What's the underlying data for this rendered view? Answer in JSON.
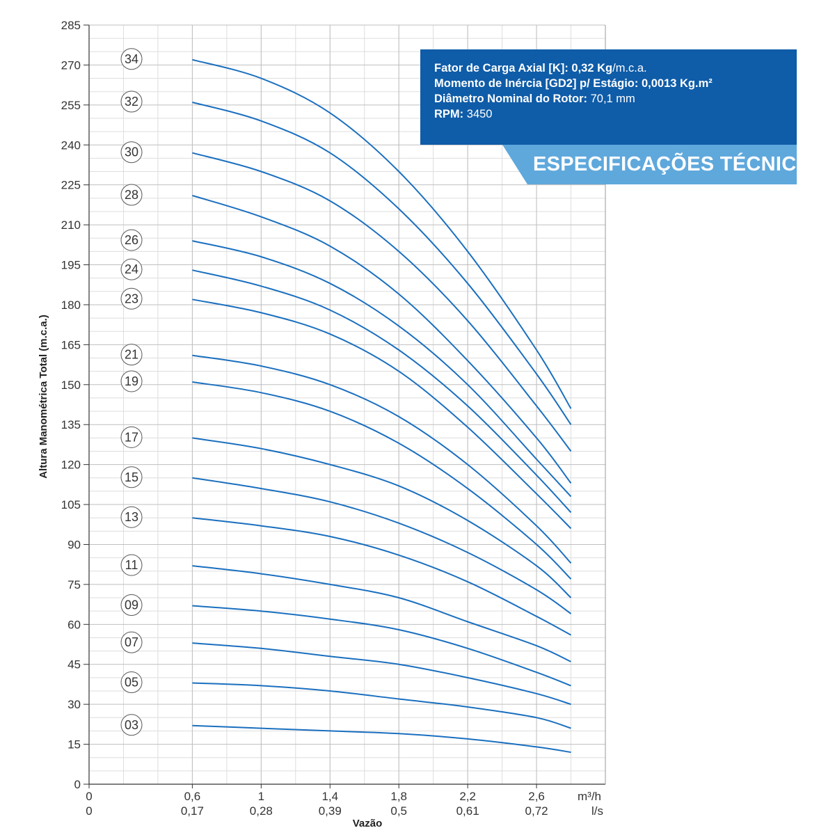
{
  "specs": {
    "line1_label": "Fator de Carga Axial [K]: 0,32 Kg",
    "line1_value": "/m.c.a.",
    "line2_label": "Momento de Inércia [GD2] p/ Estágio: 0,0013 Kg.m²",
    "line2_value": "",
    "line3_label": "Diâmetro Nominal do Rotor:",
    "line3_value": "70,1 mm",
    "line4_label": "RPM:",
    "line4_value": "3450",
    "banner": "ESPECIFICAÇÕES TÉCNICAS"
  },
  "colors": {
    "curve": "#1a6fbf",
    "banner": "#5fa8dc",
    "box": "#0f5ca8",
    "grid": "#bfbfbf"
  },
  "chart_data": {
    "type": "line",
    "title": "",
    "xlabel": "Vazão",
    "ylabel": "Altura Manométrica Total (m.c.a.)",
    "x_unit_primary": "m³/h",
    "x_unit_secondary": "l/s",
    "xlim": [
      0,
      3.0
    ],
    "ylim": [
      0,
      285
    ],
    "y_ticks": [
      "0",
      "15",
      "30",
      "45",
      "60",
      "75",
      "90",
      "105",
      "120",
      "135",
      "150",
      "165",
      "180",
      "195",
      "210",
      "225",
      "240",
      "255",
      "270",
      "285"
    ],
    "x_ticks_primary": [
      "0",
      "0,6",
      "1",
      "1,4",
      "1,8",
      "2,2",
      "2,6"
    ],
    "x_ticks_secondary": [
      "0",
      "0,17",
      "0,28",
      "0,39",
      "0,5",
      "0,61",
      "0,72"
    ],
    "x_tick_values": [
      0,
      0.6,
      1.0,
      1.4,
      1.8,
      2.2,
      2.6
    ],
    "grid": true,
    "x": [
      0.6,
      1.0,
      1.4,
      1.8,
      2.2,
      2.6,
      2.8
    ],
    "series": [
      {
        "name": "34",
        "values": [
          272,
          265,
          252,
          230,
          200,
          163,
          141
        ]
      },
      {
        "name": "32",
        "values": [
          256,
          249,
          237,
          216,
          188,
          154,
          135
        ]
      },
      {
        "name": "30",
        "values": [
          237,
          230,
          219,
          200,
          174,
          142,
          125
        ]
      },
      {
        "name": "28",
        "values": [
          221,
          213,
          202,
          184,
          159,
          130,
          113
        ]
      },
      {
        "name": "26",
        "values": [
          204,
          198,
          188,
          172,
          150,
          122,
          108
        ]
      },
      {
        "name": "24",
        "values": [
          193,
          187,
          178,
          163,
          142,
          116,
          102
        ]
      },
      {
        "name": "23",
        "values": [
          182,
          177,
          169,
          155,
          134,
          109,
          96
        ]
      },
      {
        "name": "21",
        "values": [
          161,
          157,
          150,
          138,
          120,
          97,
          83
        ]
      },
      {
        "name": "19",
        "values": [
          151,
          147,
          140,
          128,
          111,
          90,
          77
        ]
      },
      {
        "name": "17",
        "values": [
          130,
          126,
          120,
          112,
          99,
          82,
          70
        ]
      },
      {
        "name": "15",
        "values": [
          115,
          111,
          106,
          98,
          87,
          73,
          64
        ]
      },
      {
        "name": "13",
        "values": [
          100,
          97,
          93,
          86,
          76,
          63,
          56
        ]
      },
      {
        "name": "11",
        "values": [
          82,
          79,
          75,
          70,
          61,
          52,
          46
        ]
      },
      {
        "name": "09",
        "values": [
          67,
          65,
          62,
          58,
          51,
          42,
          37
        ]
      },
      {
        "name": "07",
        "values": [
          53,
          51,
          48,
          45,
          40,
          34,
          30
        ]
      },
      {
        "name": "05",
        "values": [
          38,
          37,
          35,
          32,
          29,
          25,
          21
        ]
      },
      {
        "name": "03",
        "values": [
          22,
          21,
          20,
          19,
          17,
          14,
          12
        ]
      }
    ]
  }
}
